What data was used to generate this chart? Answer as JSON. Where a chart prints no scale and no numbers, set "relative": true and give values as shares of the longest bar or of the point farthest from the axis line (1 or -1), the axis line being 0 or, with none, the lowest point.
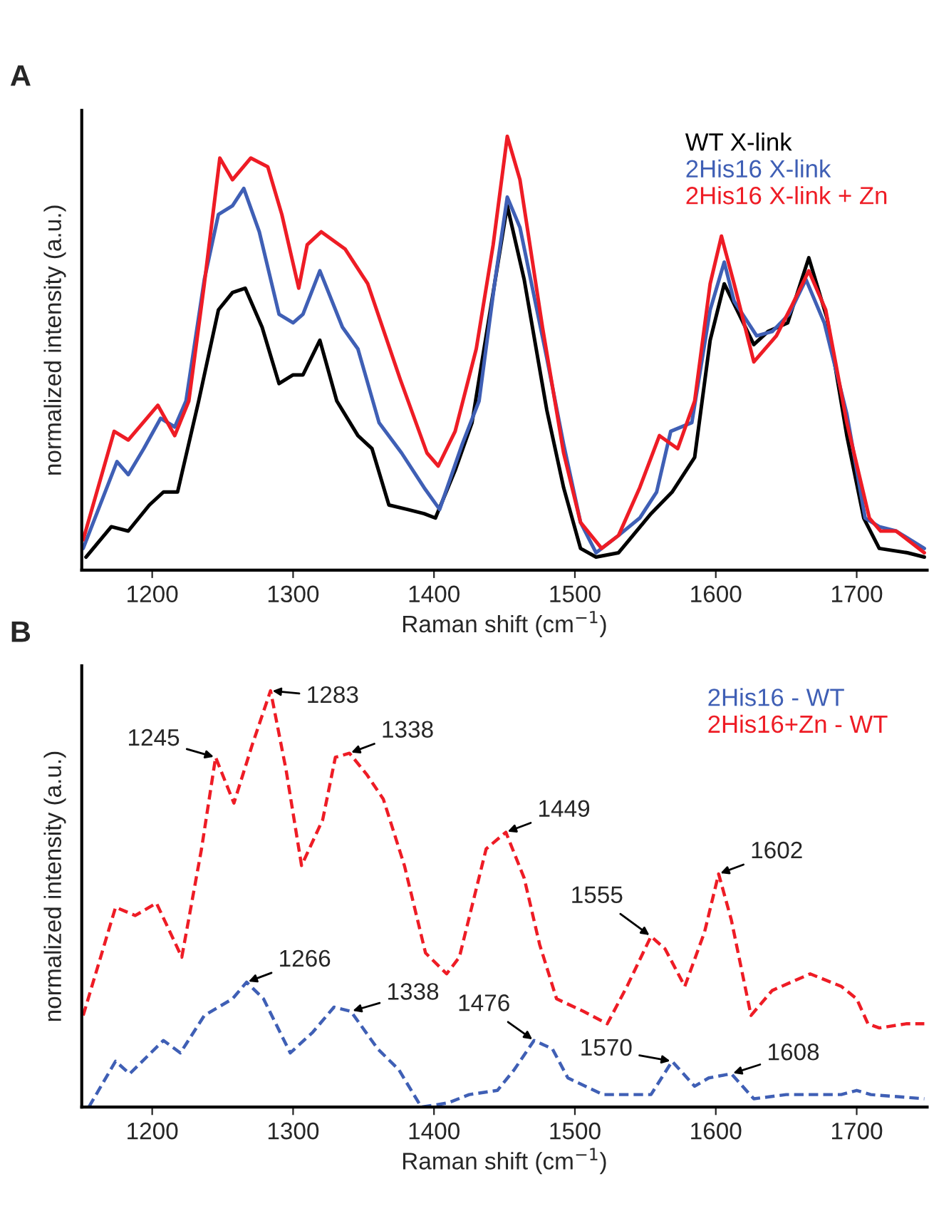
{
  "chart_data": [
    {
      "type": "line",
      "title": "A",
      "xlabel": "Raman shift (cm$^{−1}$)",
      "ylabel": "normalized intensity (a.u.)",
      "relative": true,
      "xlim": [
        1150,
        1750
      ],
      "xticks": [
        1200,
        1300,
        1400,
        1500,
        1600,
        1700
      ],
      "tick_labels": "x",
      "legend": "top right",
      "grid": false,
      "line_style": "solid",
      "marker": "none",
      "series": [
        {
          "name": "WT X-link",
          "color": "#000000",
          "x": [
            1153,
            1171,
            1183,
            1198,
            1208,
            1218,
            1233,
            1247,
            1257,
            1266,
            1278,
            1290,
            1300,
            1307,
            1319,
            1331,
            1346,
            1356,
            1368,
            1381,
            1393,
            1401,
            1415,
            1427,
            1441,
            1452,
            1464,
            1480,
            1492,
            1504,
            1515,
            1531,
            1554,
            1569,
            1585,
            1596,
            1606,
            1615,
            1627,
            1637,
            1651,
            1666,
            1679,
            1693,
            1705,
            1716,
            1736,
            1748
          ],
          "values": [
            0.03,
            0.1,
            0.09,
            0.15,
            0.18,
            0.18,
            0.39,
            0.6,
            0.64,
            0.65,
            0.56,
            0.43,
            0.45,
            0.45,
            0.53,
            0.39,
            0.31,
            0.28,
            0.15,
            0.14,
            0.13,
            0.12,
            0.23,
            0.34,
            0.62,
            0.84,
            0.67,
            0.37,
            0.19,
            0.05,
            0.03,
            0.04,
            0.13,
            0.18,
            0.26,
            0.53,
            0.66,
            0.6,
            0.52,
            0.55,
            0.57,
            0.72,
            0.58,
            0.31,
            0.12,
            0.05,
            0.04,
            0.03
          ]
        },
        {
          "name": "2His16 X-link",
          "color": "#3f5fb5",
          "x": [
            1151,
            1175,
            1183,
            1194,
            1206,
            1216,
            1224,
            1237,
            1247,
            1257,
            1265,
            1276,
            1290,
            1300,
            1307,
            1319,
            1335,
            1346,
            1361,
            1377,
            1393,
            1404,
            1420,
            1432,
            1443,
            1452,
            1461,
            1480,
            1492,
            1504,
            1515,
            1531,
            1546,
            1558,
            1568,
            1583,
            1596,
            1606,
            1613,
            1629,
            1640,
            1652,
            1664,
            1677,
            1693,
            1706,
            1716,
            1728,
            1748
          ],
          "values": [
            0.05,
            0.25,
            0.22,
            0.28,
            0.35,
            0.33,
            0.39,
            0.67,
            0.82,
            0.84,
            0.88,
            0.78,
            0.59,
            0.57,
            0.59,
            0.69,
            0.56,
            0.51,
            0.34,
            0.27,
            0.19,
            0.14,
            0.29,
            0.39,
            0.66,
            0.86,
            0.79,
            0.49,
            0.29,
            0.11,
            0.04,
            0.08,
            0.12,
            0.18,
            0.32,
            0.34,
            0.6,
            0.71,
            0.62,
            0.54,
            0.55,
            0.59,
            0.67,
            0.57,
            0.36,
            0.12,
            0.1,
            0.09,
            0.05
          ]
        },
        {
          "name": "2His16 X-link + Zn",
          "color": "#ee1c25",
          "x": [
            1151,
            1173,
            1183,
            1204,
            1216,
            1226,
            1237,
            1248,
            1257,
            1270,
            1282,
            1292,
            1304,
            1310,
            1320,
            1337,
            1353,
            1376,
            1395,
            1403,
            1415,
            1430,
            1442,
            1452,
            1461,
            1477,
            1492,
            1504,
            1519,
            1531,
            1546,
            1560,
            1573,
            1585,
            1596,
            1604,
            1613,
            1627,
            1643,
            1654,
            1666,
            1678,
            1693,
            1709,
            1717,
            1728,
            1748
          ],
          "values": [
            0.07,
            0.32,
            0.3,
            0.38,
            0.31,
            0.39,
            0.66,
            0.95,
            0.9,
            0.95,
            0.93,
            0.82,
            0.65,
            0.75,
            0.78,
            0.74,
            0.66,
            0.44,
            0.27,
            0.24,
            0.32,
            0.51,
            0.75,
            1.0,
            0.9,
            0.56,
            0.27,
            0.11,
            0.05,
            0.08,
            0.19,
            0.31,
            0.28,
            0.39,
            0.66,
            0.77,
            0.66,
            0.48,
            0.54,
            0.61,
            0.69,
            0.6,
            0.34,
            0.12,
            0.09,
            0.09,
            0.04
          ]
        }
      ]
    },
    {
      "type": "line",
      "title": "B",
      "xlabel": "Raman shift (cm$^{−1}$)",
      "ylabel": "normalized intensity (a.u.)",
      "relative": true,
      "xlim": [
        1150,
        1750
      ],
      "xticks": [
        1200,
        1300,
        1400,
        1500,
        1600,
        1700
      ],
      "tick_labels": "x",
      "legend": "top right",
      "grid": false,
      "line_style": "dashed",
      "marker": "none",
      "series": [
        {
          "name": "2His16 - WT",
          "color": "#3f5fb5",
          "x": [
            1155,
            1174,
            1184,
            1208,
            1220,
            1237,
            1257,
            1267,
            1279,
            1298,
            1314,
            1329,
            1341,
            1360,
            1375,
            1391,
            1410,
            1425,
            1445,
            1457,
            1471,
            1484,
            1495,
            1520,
            1554,
            1569,
            1585,
            1595,
            1611,
            1627,
            1650,
            1689,
            1700,
            1710,
            1748
          ],
          "values": [
            0.0,
            0.11,
            0.08,
            0.16,
            0.13,
            0.22,
            0.26,
            0.3,
            0.26,
            0.13,
            0.18,
            0.24,
            0.23,
            0.14,
            0.09,
            0.0,
            0.01,
            0.03,
            0.04,
            0.09,
            0.16,
            0.14,
            0.07,
            0.03,
            0.03,
            0.11,
            0.05,
            0.07,
            0.08,
            0.02,
            0.03,
            0.03,
            0.04,
            0.03,
            0.02
          ]
        },
        {
          "name": "2His16+Zn - WT",
          "color": "#ee1c25",
          "x": [
            1151,
            1174,
            1188,
            1203,
            1221,
            1235,
            1245,
            1258,
            1271,
            1284,
            1295,
            1306,
            1321,
            1330,
            1340,
            1352,
            1364,
            1379,
            1394,
            1409,
            1418,
            1437,
            1451,
            1464,
            1475,
            1487,
            1506,
            1523,
            1537,
            1554,
            1564,
            1578,
            1592,
            1602,
            1611,
            1625,
            1640,
            1667,
            1689,
            1700,
            1708,
            1716,
            1735,
            1748
          ],
          "values": [
            0.22,
            0.48,
            0.46,
            0.49,
            0.36,
            0.62,
            0.84,
            0.73,
            0.87,
            1.0,
            0.81,
            0.58,
            0.69,
            0.84,
            0.85,
            0.8,
            0.74,
            0.58,
            0.37,
            0.32,
            0.36,
            0.62,
            0.66,
            0.55,
            0.39,
            0.26,
            0.23,
            0.2,
            0.29,
            0.41,
            0.38,
            0.29,
            0.42,
            0.56,
            0.45,
            0.22,
            0.28,
            0.32,
            0.29,
            0.26,
            0.2,
            0.19,
            0.2,
            0.2
          ]
        }
      ],
      "annotations": [
        {
          "text": "1245",
          "x": 1245,
          "y": 0.84
        },
        {
          "text": "1283",
          "x": 1284,
          "y": 1.0
        },
        {
          "text": "1338",
          "x": 1340,
          "y": 0.85
        },
        {
          "text": "1449",
          "x": 1451,
          "y": 0.66
        },
        {
          "text": "1555",
          "x": 1554,
          "y": 0.41
        },
        {
          "text": "1602",
          "x": 1602,
          "y": 0.56
        },
        {
          "text": "1266",
          "x": 1267,
          "y": 0.3
        },
        {
          "text": "1338",
          "x": 1341,
          "y": 0.23
        },
        {
          "text": "1476",
          "x": 1471,
          "y": 0.16
        },
        {
          "text": "1570",
          "x": 1569,
          "y": 0.11
        },
        {
          "text": "1608",
          "x": 1611,
          "y": 0.08
        }
      ]
    }
  ]
}
